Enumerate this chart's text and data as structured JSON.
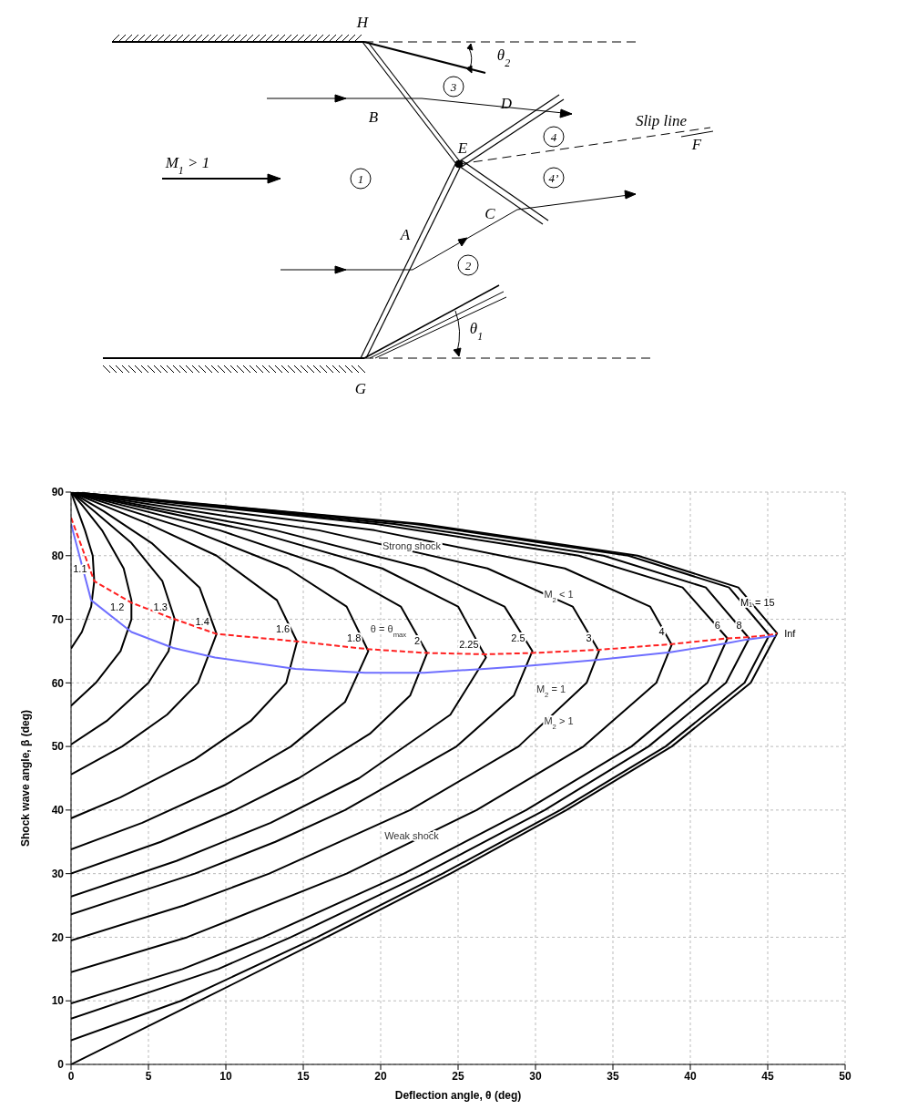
{
  "chart_data": [
    {
      "type": "other",
      "annotations": [
        "H",
        "θ$_{2}$",
        "1",
        "2",
        "3",
        "4",
        "4’",
        "B",
        "D",
        "E",
        "F",
        "Slip line",
        "M$_{1}$ > 1",
        "A",
        "C",
        "G",
        "θ$_{1}$"
      ]
    },
    {
      "type": "line",
      "xlabel": "Deflection angle, θ (deg)",
      "ylabel": "Shock wave angle, β (deg)",
      "xlim": [
        0,
        50
      ],
      "ylim": [
        0,
        90
      ],
      "xticks": [
        0,
        5,
        10,
        15,
        20,
        25,
        30,
        35,
        40,
        45,
        50
      ],
      "yticks": [
        0,
        10,
        20,
        30,
        40,
        50,
        60,
        70,
        80,
        90
      ],
      "grid": true,
      "annotations": [
        "Strong shock",
        "M$_{2}$ < 1",
        "M$_{2}$ > 1",
        "Weak shock",
        "θ = θ$_{max}$",
        "M$_{2}$ = 1"
      ],
      "series": [
        {
          "name": "1.1",
          "color": "#000000",
          "x": [
            0,
            0.7,
            1.3,
            1.5,
            1.4,
            0.9,
            0.3,
            0
          ],
          "values": [
            65.4,
            68,
            72,
            76,
            80,
            84,
            88,
            90
          ]
        },
        {
          "name": "1.2",
          "color": "#000000",
          "x": [
            0,
            1.6,
            3.2,
            3.9,
            3.9,
            3.4,
            2.0,
            0.7,
            0
          ],
          "values": [
            56.4,
            60,
            65,
            70,
            73,
            78,
            84,
            88,
            90
          ]
        },
        {
          "name": "1.3",
          "color": "#000000",
          "x": [
            0,
            2.3,
            5.0,
            6.3,
            6.7,
            5.9,
            3.9,
            1.5,
            0
          ],
          "values": [
            50.3,
            54,
            60,
            65,
            70,
            76,
            82,
            87,
            90
          ]
        },
        {
          "name": "1.4",
          "color": "#000000",
          "x": [
            0,
            3.3,
            6.2,
            8.2,
            9.4,
            8.3,
            5.2,
            2.1,
            0
          ],
          "values": [
            45.6,
            50,
            55,
            60,
            67.7,
            75,
            82,
            87,
            90
          ]
        },
        {
          "name": "1.6",
          "color": "#000000",
          "x": [
            0,
            3.2,
            8.0,
            11.6,
            13.9,
            14.6,
            13.3,
            9.4,
            5.0,
            0
          ],
          "values": [
            38.7,
            42,
            48,
            54,
            60,
            66.5,
            73,
            80,
            85,
            90
          ]
        },
        {
          "name": "1.8",
          "color": "#000000",
          "x": [
            0,
            4.6,
            10.0,
            14.2,
            17.7,
            19.2,
            17.8,
            14.0,
            7.8,
            0
          ],
          "values": [
            33.8,
            38,
            44,
            50,
            57,
            65,
            72,
            78,
            84,
            90
          ]
        },
        {
          "name": "2",
          "color": "#000000",
          "x": [
            0,
            5.8,
            10.6,
            14.7,
            19.3,
            21.9,
            23.0,
            21.3,
            16.9,
            9.6,
            0
          ],
          "values": [
            30,
            35,
            40,
            45,
            52,
            58,
            64.7,
            72,
            78,
            84,
            90
          ]
        },
        {
          "name": "2.25",
          "color": "#000000",
          "x": [
            0,
            6.8,
            12.9,
            18.6,
            24.5,
            26.8,
            25.0,
            20.1,
            11.5,
            0
          ],
          "values": [
            26.4,
            32,
            38,
            45,
            55,
            64,
            72,
            78,
            84,
            90
          ]
        },
        {
          "name": "2.5",
          "color": "#000000",
          "x": [
            0,
            8.0,
            13.2,
            17.7,
            24.9,
            28.6,
            29.8,
            28.0,
            22.8,
            13.2,
            0
          ],
          "values": [
            23.6,
            30,
            35,
            40,
            50,
            58,
            65,
            72,
            78,
            84,
            90
          ]
        },
        {
          "name": "3",
          "color": "#000000",
          "x": [
            0,
            7.3,
            12.8,
            21.9,
            28.9,
            33.3,
            34.1,
            32.4,
            26.9,
            16.0,
            0
          ],
          "values": [
            19.5,
            25,
            30,
            40,
            50,
            60,
            65,
            72,
            78,
            84,
            90
          ]
        },
        {
          "name": "4",
          "color": "#000000",
          "x": [
            0,
            7.5,
            17.8,
            26.2,
            33.1,
            37.8,
            38.8,
            37.4,
            31.9,
            19.6,
            0
          ],
          "values": [
            14.5,
            20,
            30,
            40,
            50,
            60,
            66,
            72,
            78,
            84,
            90
          ]
        },
        {
          "name": "6",
          "color": "#000000",
          "x": [
            0,
            7.2,
            12.4,
            21.5,
            29.4,
            36.2,
            41.1,
            42.4,
            39.5,
            32.8,
            19.7,
            0
          ],
          "values": [
            9.6,
            15,
            20,
            30,
            40,
            50,
            60,
            67,
            75,
            80,
            85,
            90
          ]
        },
        {
          "name": "8",
          "color": "#000000",
          "x": [
            0,
            9.5,
            14.2,
            22.8,
            30.6,
            37.3,
            42.3,
            43.8,
            41.0,
            34.4,
            20.9,
            0
          ],
          "values": [
            7.2,
            15,
            20,
            30,
            40,
            50,
            60,
            67,
            75,
            80,
            85,
            90
          ]
        },
        {
          "name": "M₁ = 15",
          "color": "#000000",
          "x": [
            0,
            7.1,
            15.9,
            24.0,
            31.6,
            38.4,
            43.5,
            45.1,
            42.5,
            36.0,
            22.2,
            0
          ],
          "values": [
            3.8,
            10,
            20,
            30,
            40,
            50,
            60,
            67.5,
            75,
            80,
            85,
            90
          ]
        },
        {
          "name": "Inf",
          "color": "#000000",
          "x": [
            0,
            8.3,
            16.5,
            24.5,
            32.0,
            38.8,
            43.9,
            45.6,
            43.1,
            36.6,
            22.7,
            0
          ],
          "values": [
            0,
            10,
            20,
            30,
            40,
            50,
            60,
            67.8,
            75,
            80,
            85,
            90
          ]
        },
        {
          "color": "#ff2020",
          "line_style": "dashed",
          "x": [
            0,
            1.5,
            3.9,
            6.7,
            9.4,
            14.7,
            19.2,
            23.0,
            26.8,
            29.8,
            34.1,
            38.8,
            42.4,
            43.8,
            45.1,
            45.6
          ],
          "values": [
            86,
            76,
            72.6,
            70,
            67.7,
            66.5,
            65.3,
            64.7,
            64.5,
            64.7,
            65.2,
            66.1,
            67,
            67.2,
            67.5,
            67.8
          ]
        },
        {
          "color": "#6f6fff",
          "x": [
            0,
            1.3,
            3.9,
            6.6,
            9.3,
            14.5,
            19,
            22.8,
            26.7,
            29.6,
            33.9,
            38.7,
            42.3,
            43.6,
            44.9,
            45.5
          ],
          "values": [
            85,
            73,
            68,
            65.5,
            64,
            62.2,
            61.6,
            61.6,
            62.2,
            62.7,
            63.6,
            64.8,
            66.2,
            66.8,
            67.2,
            67.4
          ]
        }
      ]
    }
  ]
}
